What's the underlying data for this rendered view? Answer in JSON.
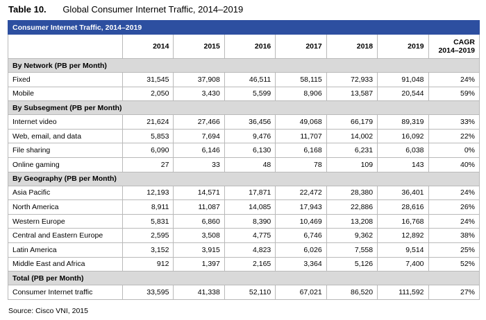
{
  "caption": {
    "number": "Table 10.",
    "title": "Global Consumer Internet Traffic, 2014–2019"
  },
  "table": {
    "banner": "Consumer Internet Traffic, 2014–2019",
    "columns": [
      "2014",
      "2015",
      "2016",
      "2017",
      "2018",
      "2019"
    ],
    "cagr_header_line1": "CAGR",
    "cagr_header_line2": "2014–2019",
    "sections": [
      {
        "title": "By Network (PB per Month)",
        "rows": [
          {
            "label": "Fixed",
            "values": [
              "31,545",
              "37,908",
              "46,511",
              "58,115",
              "72,933",
              "91,048"
            ],
            "cagr": "24%"
          },
          {
            "label": "Mobile",
            "values": [
              "2,050",
              "3,430",
              "5,599",
              "8,906",
              "13,587",
              "20,544"
            ],
            "cagr": "59%"
          }
        ]
      },
      {
        "title": "By Subsegment (PB per Month)",
        "rows": [
          {
            "label": "Internet video",
            "values": [
              "21,624",
              "27,466",
              "36,456",
              "49,068",
              "66,179",
              "89,319"
            ],
            "cagr": "33%"
          },
          {
            "label": "Web, email, and data",
            "values": [
              "5,853",
              "7,694",
              "9,476",
              "11,707",
              "14,002",
              "16,092"
            ],
            "cagr": "22%"
          },
          {
            "label": "File sharing",
            "values": [
              "6,090",
              "6,146",
              "6,130",
              "6,168",
              "6,231",
              "6,038"
            ],
            "cagr": "0%"
          },
          {
            "label": "Online gaming",
            "values": [
              "27",
              "33",
              "48",
              "78",
              "109",
              "143"
            ],
            "cagr": "40%"
          }
        ]
      },
      {
        "title": "By Geography (PB per Month)",
        "rows": [
          {
            "label": "Asia Pacific",
            "values": [
              "12,193",
              "14,571",
              "17,871",
              "22,472",
              "28,380",
              "36,401"
            ],
            "cagr": "24%"
          },
          {
            "label": "North America",
            "values": [
              "8,911",
              "11,087",
              "14,085",
              "17,943",
              "22,886",
              "28,616"
            ],
            "cagr": "26%"
          },
          {
            "label": "Western Europe",
            "values": [
              "5,831",
              "6,860",
              "8,390",
              "10,469",
              "13,208",
              "16,768"
            ],
            "cagr": "24%"
          },
          {
            "label": "Central and Eastern Europe",
            "values": [
              "2,595",
              "3,508",
              "4,775",
              "6,746",
              "9,362",
              "12,892"
            ],
            "cagr": "38%"
          },
          {
            "label": "Latin America",
            "values": [
              "3,152",
              "3,915",
              "4,823",
              "6,026",
              "7,558",
              "9,514"
            ],
            "cagr": "25%"
          },
          {
            "label": "Middle East and Africa",
            "values": [
              "912",
              "1,397",
              "2,165",
              "3,364",
              "5,126",
              "7,400"
            ],
            "cagr": "52%"
          }
        ]
      },
      {
        "title": "Total (PB per Month)",
        "rows": [
          {
            "label": "Consumer Internet traffic",
            "values": [
              "33,595",
              "41,338",
              "52,110",
              "67,021",
              "86,520",
              "111,592"
            ],
            "cagr": "27%"
          }
        ]
      }
    ]
  },
  "source": "Source: Cisco VNI, 2015",
  "colors": {
    "banner_bg": "#2d4fa0",
    "section_bg": "#d9d9d9",
    "border": "#b9b9b9"
  }
}
